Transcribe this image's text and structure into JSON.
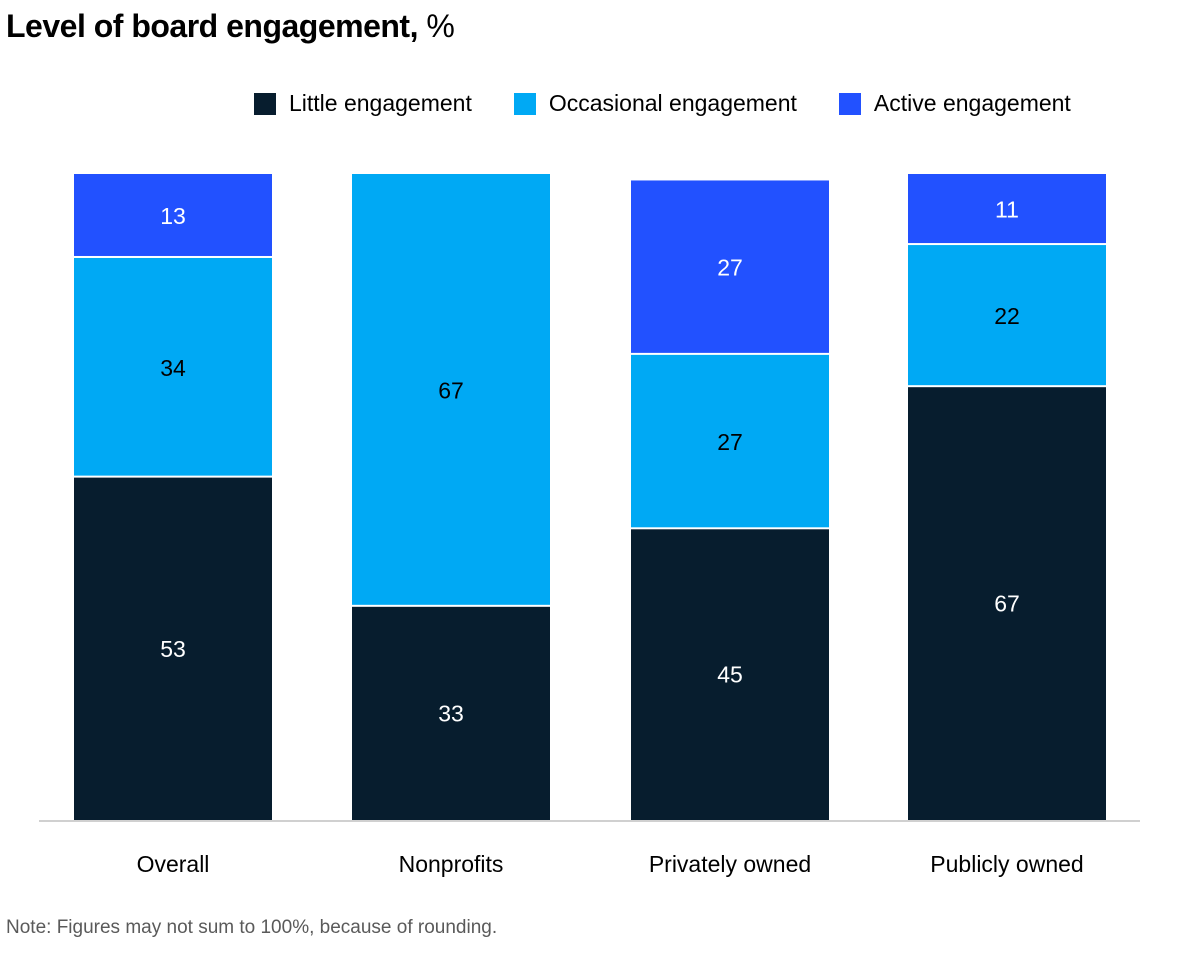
{
  "title": {
    "bold": "Level of board engagement,",
    "unit": " %"
  },
  "colors": {
    "little": "#071d2e",
    "occasional": "#00a9f4",
    "active": "#2251ff",
    "axis": "#d0d0d0"
  },
  "legend": [
    {
      "key": "little",
      "label": "Little engagement"
    },
    {
      "key": "occasional",
      "label": "Occasional engagement"
    },
    {
      "key": "active",
      "label": "Active engagement"
    }
  ],
  "note": "Note: Figures may not sum to 100%, because of rounding.",
  "chart_data": {
    "type": "bar",
    "stacked": true,
    "title": "Level of board engagement, %",
    "xlabel": "",
    "ylabel": "",
    "ylim": [
      0,
      100
    ],
    "grid": false,
    "legend_position": "top-right",
    "categories": [
      "Overall",
      "Nonprofits",
      "Privately owned",
      "Publicly owned"
    ],
    "series": [
      {
        "key": "little",
        "name": "Little engagement",
        "values": [
          53,
          33,
          45,
          67
        ]
      },
      {
        "key": "occasional",
        "name": "Occasional engagement",
        "values": [
          34,
          67,
          27,
          22
        ]
      },
      {
        "key": "active",
        "name": "Active engagement",
        "values": [
          13,
          0,
          27,
          11
        ]
      }
    ]
  }
}
